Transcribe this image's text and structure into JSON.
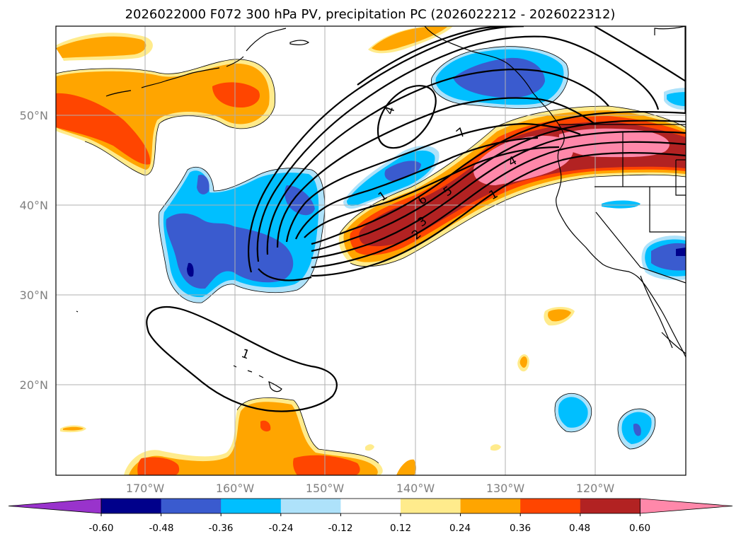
{
  "title": "2026022000 F072 300 hPa PV, precipitation PC (2026022212 - 2026022312)",
  "map": {
    "lon_ticks": [
      "170°W",
      "160°W",
      "150°W",
      "140°W",
      "130°W",
      "120°W"
    ],
    "lat_ticks": [
      "50°N",
      "40°N",
      "30°N",
      "20°N"
    ],
    "extent": {
      "lon_min": -182,
      "lon_max": -112,
      "lat_min": 10,
      "lat_max": 60
    },
    "grid": true,
    "projection": "PlateCarree"
  },
  "contour_labels": [
    "4",
    "7",
    "4",
    "1",
    "6",
    "5",
    "3",
    "2",
    "1",
    "1"
  ],
  "colorbar": {
    "ticks": [
      "-0.60",
      "-0.48",
      "-0.36",
      "-0.24",
      "-0.12",
      "0.12",
      "0.24",
      "0.36",
      "0.48",
      "0.60"
    ],
    "bins": [
      {
        "range": "< -0.60",
        "color": "#9933cc"
      },
      {
        "range": "-0.60 to -0.48",
        "color": "#00008b"
      },
      {
        "range": "-0.48 to -0.36",
        "color": "#3a5bcf"
      },
      {
        "range": "-0.36 to -0.24",
        "color": "#00bfff"
      },
      {
        "range": "-0.24 to -0.12",
        "color": "#aee2fa"
      },
      {
        "range": "-0.12 to 0.12",
        "color": "#ffffff"
      },
      {
        "range": "0.12 to 0.24",
        "color": "#ffeb8c"
      },
      {
        "range": "0.24 to 0.36",
        "color": "#ffa500"
      },
      {
        "range": "0.36 to 0.48",
        "color": "#ff4500"
      },
      {
        "range": "0.48 to 0.60",
        "color": "#b22222"
      },
      {
        "range": "> 0.60",
        "color": "#ff88aa"
      }
    ],
    "extend": "both"
  }
}
